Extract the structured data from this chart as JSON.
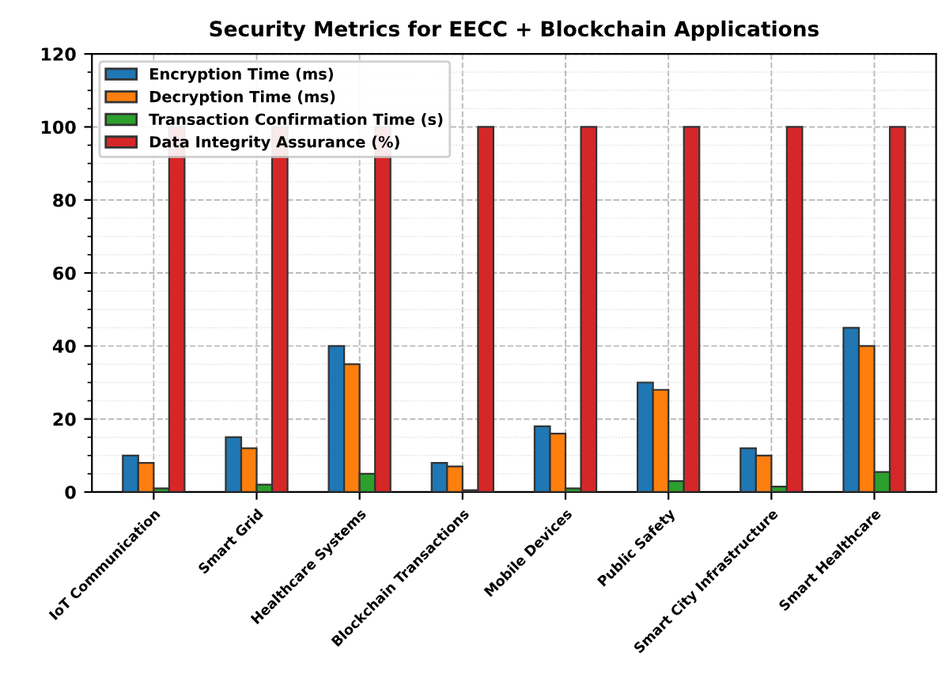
{
  "chart_data": {
    "type": "bar",
    "title": "Security Metrics for EECC + Blockchain Applications",
    "categories": [
      "IoT Communication",
      "Smart Grid",
      "Healthcare Systems",
      "Blockchain Transactions",
      "Mobile Devices",
      "Public Safety",
      "Smart City Infrastructure",
      "Smart Healthcare"
    ],
    "series": [
      {
        "name": "Encryption Time (ms)",
        "color": "#1f77b4",
        "values": [
          10,
          15,
          40,
          8,
          18,
          30,
          12,
          45
        ]
      },
      {
        "name": "Decryption Time (ms)",
        "color": "#ff7f0e",
        "values": [
          8,
          12,
          35,
          7,
          16,
          28,
          10,
          40
        ]
      },
      {
        "name": "Transaction Confirmation Time (s)",
        "color": "#2ca02c",
        "values": [
          1,
          2,
          5,
          0.5,
          1,
          3,
          1.5,
          5.5
        ]
      },
      {
        "name": "Data Integrity Assurance (%)",
        "color": "#d62728",
        "values": [
          100,
          100,
          100,
          100,
          100,
          100,
          100,
          100
        ]
      }
    ],
    "ylim": [
      0,
      120
    ],
    "yticks": [
      0,
      20,
      40,
      60,
      80,
      100,
      120
    ],
    "grid": true,
    "legend": "top left"
  }
}
